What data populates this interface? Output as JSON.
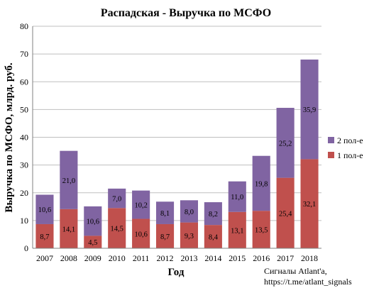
{
  "chart_data": {
    "type": "bar",
    "stacked": true,
    "title": "Распадская - Выручка по МСФО",
    "xlabel": "Год",
    "ylabel": "Выручка по МСФО, млрд. руб.",
    "ylim": [
      0,
      80
    ],
    "yticks": [
      "0",
      "10",
      "20",
      "30",
      "40",
      "50",
      "60",
      "70",
      "80"
    ],
    "grid": true,
    "legend_position": "right",
    "categories": [
      "2007",
      "2008",
      "2009",
      "2010",
      "2011",
      "2012",
      "2013",
      "2014",
      "2015",
      "2016",
      "2017",
      "2018"
    ],
    "series": [
      {
        "name": "1 пол-е",
        "color": "#c0504d",
        "values": [
          8.7,
          14.1,
          4.5,
          14.5,
          10.6,
          8.7,
          9.3,
          8.4,
          13.1,
          13.5,
          25.4,
          32.1
        ],
        "labels": [
          "8,7",
          "14,1",
          "4,5",
          "14,5",
          "10,6",
          "8,7",
          "9,3",
          "8,4",
          "13,1",
          "13,5",
          "25,4",
          "32,1"
        ]
      },
      {
        "name": "2 пол-е",
        "color": "#8064a2",
        "values": [
          10.6,
          21.0,
          10.6,
          7.0,
          10.2,
          8.1,
          8.0,
          8.2,
          11.0,
          19.8,
          25.2,
          35.9
        ],
        "labels": [
          "10,6",
          "21,0",
          "10,6",
          "7,0",
          "10,2",
          "8,1",
          "8,0",
          "8,2",
          "11,0",
          "19,8",
          "25,2",
          "35,9"
        ]
      }
    ]
  },
  "source_text": {
    "line1": "Сигналы Atlant'a,",
    "line2": "https://t.me/atlant_signals"
  }
}
